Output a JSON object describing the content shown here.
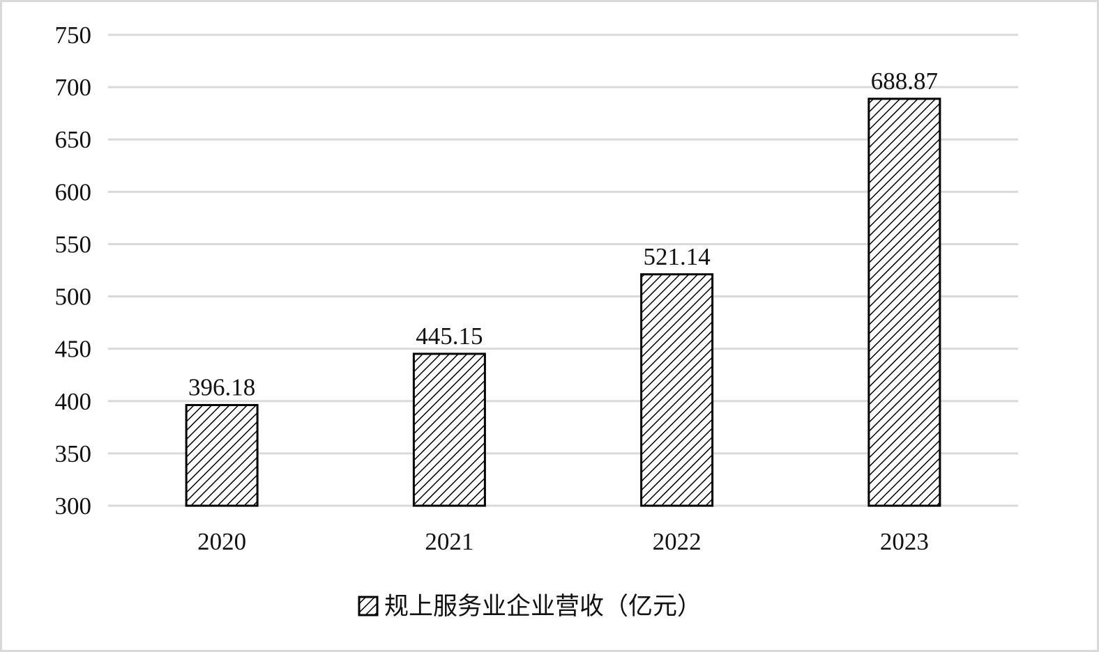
{
  "chart_data": {
    "type": "bar",
    "categories": [
      "2020",
      "2021",
      "2022",
      "2023"
    ],
    "series": [
      {
        "name": "规上服务业企业营收（亿元）",
        "values": [
          396.18,
          445.15,
          521.14,
          688.87
        ],
        "data_labels": [
          "396.18",
          "445.15",
          "521.14",
          "688.87"
        ]
      }
    ],
    "ylim": [
      300,
      750
    ],
    "yticks": [
      "300",
      "350",
      "400",
      "450",
      "500",
      "550",
      "600",
      "650",
      "700",
      "750"
    ],
    "ytick_values": [
      300,
      350,
      400,
      450,
      500,
      550,
      600,
      650,
      700,
      750
    ],
    "grid": true,
    "legend_position": "bottom",
    "bar_fill": "diagonal-hatch",
    "colors": {
      "bar_stroke": "#000000",
      "hatch": "#000000",
      "gridline": "#d9d9d9",
      "text": "#111111"
    }
  }
}
